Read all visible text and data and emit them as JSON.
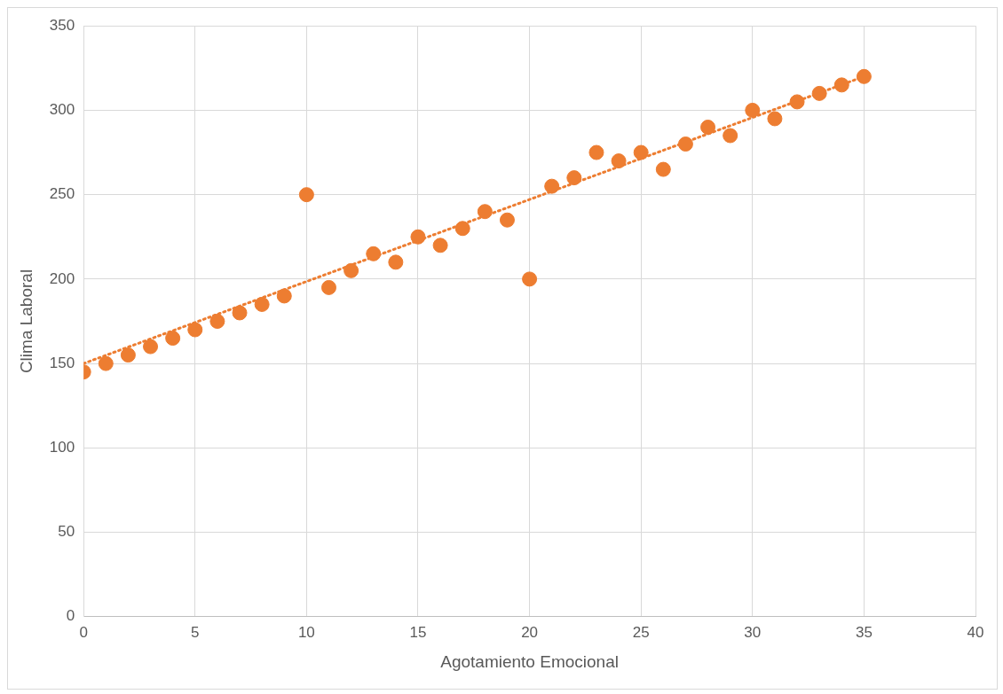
{
  "chart_data": {
    "type": "scatter",
    "xlabel": "Agotamiento Emocional",
    "ylabel": "Clima Laboral",
    "xlim": [
      0,
      40
    ],
    "xticks": [
      0,
      5,
      10,
      15,
      20,
      25,
      30,
      35,
      40
    ],
    "ylim": [
      0,
      350
    ],
    "yticks": [
      0,
      50,
      100,
      150,
      200,
      250,
      300,
      350
    ],
    "grid": true,
    "legend": false,
    "marker": "circle",
    "series": [
      {
        "type": "scatter",
        "color": "#ed7d31",
        "x": [
          0,
          1,
          2,
          3,
          4,
          5,
          6,
          7,
          8,
          9,
          10,
          11,
          12,
          13,
          14,
          15,
          16,
          17,
          18,
          19,
          20,
          21,
          22,
          23,
          24,
          25,
          26,
          27,
          28,
          29,
          30,
          31,
          32,
          33,
          34,
          35
        ],
        "values": [
          145,
          150,
          155,
          160,
          165,
          170,
          175,
          180,
          185,
          190,
          250,
          195,
          205,
          215,
          210,
          225,
          220,
          230,
          240,
          235,
          200,
          255,
          260,
          275,
          270,
          275,
          265,
          280,
          290,
          285,
          300,
          295,
          305,
          310,
          315,
          320
        ]
      },
      {
        "type": "line",
        "color": "#ed7d31",
        "x": [
          0,
          35
        ],
        "values": [
          150,
          320
        ],
        "marker": "none",
        "line_style": "dotted"
      }
    ]
  }
}
